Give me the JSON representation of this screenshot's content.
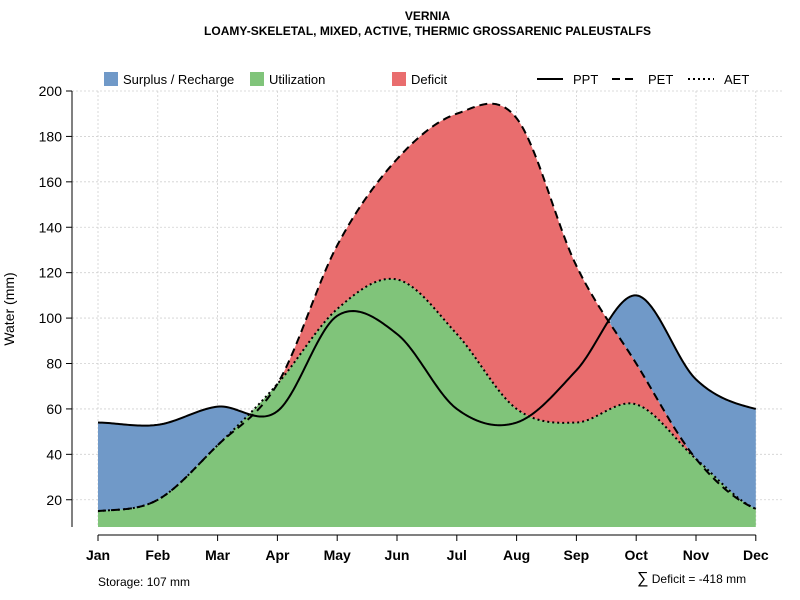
{
  "title": "VERNIA",
  "subtitle": "LOAMY-SKELETAL, MIXED, ACTIVE, THERMIC GROSSARENIC PALEUSTALFS",
  "chart_data": {
    "type": "area",
    "categories": [
      "Jan",
      "Feb",
      "Mar",
      "Apr",
      "May",
      "Jun",
      "Jul",
      "Aug",
      "Sep",
      "Oct",
      "Nov",
      "Dec"
    ],
    "ylabel": "Water (mm)",
    "ylim": [
      8,
      200
    ],
    "yticks": [
      20,
      40,
      60,
      80,
      100,
      120,
      140,
      160,
      180,
      200
    ],
    "grid": true,
    "series": [
      {
        "name": "PPT",
        "style": "solid",
        "values": [
          54,
          53,
          61,
          59,
          101,
          93,
          60,
          54,
          77,
          110,
          73,
          60
        ]
      },
      {
        "name": "PET",
        "style": "dashed",
        "values": [
          15,
          20,
          44,
          71,
          132,
          170,
          190,
          188,
          123,
          80,
          38,
          16
        ]
      },
      {
        "name": "AET",
        "style": "dotted",
        "values": [
          15,
          20,
          44,
          71,
          104,
          117,
          93,
          60,
          54,
          62,
          38,
          16
        ]
      }
    ],
    "legend": [
      {
        "label": "Surplus / Recharge",
        "color": "#7099c8"
      },
      {
        "label": "Utilization",
        "color": "#80c47a"
      },
      {
        "label": "Deficit",
        "color": "#e96d6e"
      },
      {
        "label": "PPT",
        "line": "solid"
      },
      {
        "label": "PET",
        "line": "dashed"
      },
      {
        "label": "AET",
        "line": "dotted"
      }
    ]
  },
  "colors": {
    "surplus": "#7099c8",
    "utilization": "#80c47a",
    "deficit": "#e96d6e",
    "grid": "#d0d0d0"
  },
  "footer": {
    "storage": "Storage: 107 mm",
    "deficit_symbol": "∑",
    "deficit": "Deficit = -418 mm"
  }
}
